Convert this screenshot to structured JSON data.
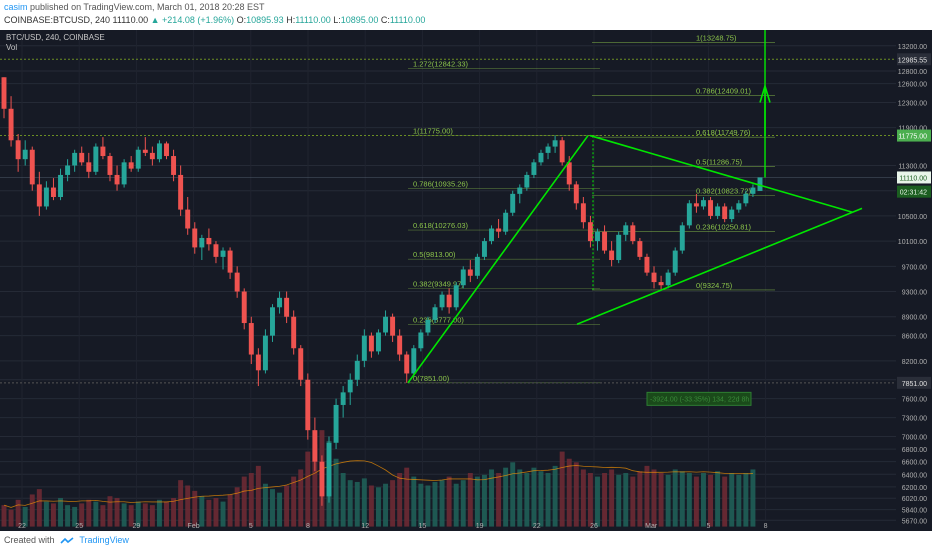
{
  "header": {
    "author": "casim",
    "published_text": "published on TradingView.com, March 01, 2018 20:28 EST",
    "symbol": "COINBASE:BTCUSD, 240",
    "last": "11110.00",
    "change": "+214.08 (+1.96%)",
    "o_label": "O:",
    "o": "10895.93",
    "h_label": "H:",
    "h": "11110.00",
    "l_label": "L:",
    "l": "10895.00",
    "c_label": "C:",
    "c": "11110.00"
  },
  "footer": {
    "created_with": "Created with",
    "brand": "TradingView"
  },
  "chart_data": {
    "type": "candlestick",
    "symbol_label": "BTC/USD, 240, COINBASE",
    "volume_label": "Vol",
    "colors": {
      "up": "#26a69a",
      "down": "#ef5350",
      "drawing": "#00e600",
      "fib": "#8bc34a",
      "bg": "#161a25",
      "ma": "#ff9800"
    },
    "ylim": [
      5500,
      13450
    ],
    "price_ticks": [
      13200,
      12800,
      12600,
      12300,
      11900,
      11300,
      10900,
      10500,
      10100,
      9700,
      9300,
      8900,
      8600,
      8200,
      7900,
      7600,
      7300,
      7000,
      6800,
      6600,
      6400,
      6200,
      6020,
      5840,
      5670
    ],
    "price_labels": [
      {
        "value": 12985.55,
        "text": "12985.55",
        "style": "marker"
      },
      {
        "value": 11775,
        "text": "11775.00",
        "style": "green"
      },
      {
        "value": 11110,
        "text": "11110.00",
        "style": "current"
      },
      {
        "value": 10885,
        "text": "02:31:42",
        "style": "countdown"
      },
      {
        "value": 7851,
        "text": "7851.00",
        "style": "marker"
      }
    ],
    "x_labels": [
      "22",
      "25",
      "29",
      "Feb",
      "5",
      "8",
      "12",
      "15",
      "19",
      "22",
      "26",
      "Mar",
      "5",
      "8"
    ],
    "fib_left": [
      {
        "text": "1.272(12842.33)",
        "price": 12842.33
      },
      {
        "text": "1(11775.00)",
        "price": 11775
      },
      {
        "text": "0.786(10935.26)",
        "price": 10935.26
      },
      {
        "text": "0.618(10276.03)",
        "price": 10276.03
      },
      {
        "text": "0.5(9813.00)",
        "price": 9813
      },
      {
        "text": "0.382(9349.97)",
        "price": 9349.97
      },
      {
        "text": "0.236(8777.00)",
        "price": 8777
      },
      {
        "text": "0(7851.00)",
        "price": 7851
      }
    ],
    "fib_right": [
      {
        "text": "1(13248.75)",
        "price": 13248.75
      },
      {
        "text": "0.786(12409.01)",
        "price": 12409.01
      },
      {
        "text": "0.618(11749.76)",
        "price": 11749.76
      },
      {
        "text": "0.5(11286.75)",
        "price": 11286.75
      },
      {
        "text": "0.382(10823.72)",
        "price": 10823.72
      },
      {
        "text": "0.236(10250.81)",
        "price": 10250.81
      },
      {
        "text": "0(9324.75)",
        "price": 9324.75
      }
    ],
    "projection_label": "-3924.00 (-33.35%) 134, 22d 8h",
    "candles_ohlc": [
      [
        12700,
        12700,
        12050,
        12200
      ],
      [
        12200,
        12400,
        11600,
        11700
      ],
      [
        11700,
        11800,
        11200,
        11400
      ],
      [
        11400,
        11700,
        11300,
        11550
      ],
      [
        11550,
        11600,
        10900,
        11000
      ],
      [
        11000,
        11200,
        10500,
        10650
      ],
      [
        10650,
        11050,
        10600,
        10950
      ],
      [
        10950,
        11100,
        10750,
        10800
      ],
      [
        10800,
        11250,
        10750,
        11150
      ],
      [
        11150,
        11400,
        11050,
        11300
      ],
      [
        11300,
        11550,
        11200,
        11500
      ],
      [
        11500,
        11600,
        11300,
        11350
      ],
      [
        11350,
        11500,
        11100,
        11200
      ],
      [
        11200,
        11650,
        11150,
        11600
      ],
      [
        11600,
        11750,
        11400,
        11450
      ],
      [
        11450,
        11500,
        11050,
        11150
      ],
      [
        11150,
        11300,
        10900,
        11000
      ],
      [
        11000,
        11400,
        10950,
        11350
      ],
      [
        11350,
        11450,
        11200,
        11250
      ],
      [
        11250,
        11600,
        11200,
        11550
      ],
      [
        11550,
        11750,
        11450,
        11500
      ],
      [
        11500,
        11600,
        11300,
        11400
      ],
      [
        11400,
        11700,
        11350,
        11650
      ],
      [
        11650,
        11680,
        11400,
        11450
      ],
      [
        11450,
        11550,
        11050,
        11150
      ],
      [
        11150,
        11300,
        10500,
        10600
      ],
      [
        10600,
        10800,
        10200,
        10300
      ],
      [
        10300,
        10400,
        9900,
        10000
      ],
      [
        10000,
        10200,
        9800,
        10150
      ],
      [
        10150,
        10300,
        9950,
        10050
      ],
      [
        10050,
        10100,
        9750,
        9850
      ],
      [
        9850,
        10000,
        9650,
        9950
      ],
      [
        9950,
        10000,
        9500,
        9600
      ],
      [
        9600,
        9700,
        9200,
        9300
      ],
      [
        9300,
        9350,
        8700,
        8800
      ],
      [
        8800,
        8900,
        8150,
        8300
      ],
      [
        8300,
        8400,
        7800,
        8050
      ],
      [
        8050,
        8700,
        8000,
        8600
      ],
      [
        8600,
        9100,
        8500,
        9050
      ],
      [
        9050,
        9300,
        8950,
        9200
      ],
      [
        9200,
        9300,
        8800,
        8900
      ],
      [
        8900,
        9000,
        8300,
        8400
      ],
      [
        8400,
        8450,
        7800,
        7900
      ],
      [
        7900,
        8000,
        6950,
        7100
      ],
      [
        7100,
        7300,
        6450,
        6600
      ],
      [
        6600,
        6700,
        5900,
        6050
      ],
      [
        6050,
        7000,
        5950,
        6900
      ],
      [
        6900,
        7600,
        6800,
        7500
      ],
      [
        7500,
        7800,
        7300,
        7700
      ],
      [
        7700,
        8000,
        7500,
        7900
      ],
      [
        7900,
        8300,
        7800,
        8200
      ],
      [
        8200,
        8700,
        8100,
        8600
      ],
      [
        8600,
        8650,
        8250,
        8350
      ],
      [
        8350,
        8700,
        8300,
        8650
      ],
      [
        8650,
        9000,
        8600,
        8900
      ],
      [
        8900,
        8950,
        8500,
        8600
      ],
      [
        8600,
        8700,
        8200,
        8300
      ],
      [
        8300,
        8350,
        7851,
        8000
      ],
      [
        8000,
        8450,
        7950,
        8400
      ],
      [
        8400,
        8700,
        8350,
        8650
      ],
      [
        8650,
        8900,
        8600,
        8850
      ],
      [
        8850,
        9100,
        8800,
        9050
      ],
      [
        9050,
        9300,
        9000,
        9250
      ],
      [
        9250,
        9350,
        8950,
        9050
      ],
      [
        9050,
        9450,
        9000,
        9400
      ],
      [
        9400,
        9700,
        9350,
        9650
      ],
      [
        9650,
        9800,
        9450,
        9550
      ],
      [
        9550,
        9900,
        9500,
        9850
      ],
      [
        9850,
        10150,
        9800,
        10100
      ],
      [
        10100,
        10350,
        10050,
        10300
      ],
      [
        10300,
        10450,
        10150,
        10250
      ],
      [
        10250,
        10600,
        10200,
        10550
      ],
      [
        10550,
        10900,
        10500,
        10850
      ],
      [
        10850,
        11000,
        10700,
        10950
      ],
      [
        10950,
        11200,
        10900,
        11150
      ],
      [
        11150,
        11400,
        11100,
        11350
      ],
      [
        11350,
        11550,
        11300,
        11500
      ],
      [
        11500,
        11650,
        11400,
        11600
      ],
      [
        11600,
        11775,
        11500,
        11700
      ],
      [
        11700,
        11750,
        11300,
        11350
      ],
      [
        11350,
        11450,
        10900,
        11000
      ],
      [
        11000,
        11050,
        10600,
        10700
      ],
      [
        10700,
        10800,
        10300,
        10400
      ],
      [
        10400,
        10500,
        10000,
        10100
      ],
      [
        10100,
        10300,
        9950,
        10250
      ],
      [
        10250,
        10350,
        9900,
        9950
      ],
      [
        9950,
        10100,
        9700,
        9800
      ],
      [
        9800,
        10250,
        9750,
        10200
      ],
      [
        10200,
        10400,
        10100,
        10350
      ],
      [
        10350,
        10400,
        10050,
        10100
      ],
      [
        10100,
        10150,
        9800,
        9850
      ],
      [
        9850,
        9900,
        9550,
        9600
      ],
      [
        9600,
        9700,
        9350,
        9450
      ],
      [
        9450,
        9550,
        9324.75,
        9400
      ],
      [
        9400,
        9650,
        9350,
        9600
      ],
      [
        9600,
        10000,
        9550,
        9950
      ],
      [
        9950,
        10400,
        9900,
        10350
      ],
      [
        10350,
        10750,
        10300,
        10700
      ],
      [
        10700,
        10850,
        10550,
        10650
      ],
      [
        10650,
        10800,
        10600,
        10750
      ],
      [
        10750,
        10800,
        10450,
        10500
      ],
      [
        10500,
        10700,
        10450,
        10650
      ],
      [
        10650,
        10700,
        10400,
        10450
      ],
      [
        10450,
        10650,
        10400,
        10600
      ],
      [
        10600,
        10750,
        10550,
        10700
      ],
      [
        10700,
        10900,
        10650,
        10850
      ],
      [
        10850,
        11000,
        10800,
        10950
      ],
      [
        10895.93,
        11110,
        10895,
        11110
      ]
    ],
    "volume": [
      120,
      95,
      150,
      110,
      180,
      210,
      140,
      130,
      160,
      120,
      110,
      130,
      150,
      140,
      120,
      170,
      160,
      130,
      120,
      140,
      130,
      120,
      150,
      140,
      160,
      260,
      230,
      200,
      170,
      150,
      160,
      140,
      180,
      220,
      280,
      300,
      340,
      240,
      210,
      190,
      230,
      280,
      320,
      420,
      460,
      540,
      480,
      380,
      300,
      260,
      250,
      270,
      230,
      220,
      240,
      260,
      300,
      330,
      280,
      240,
      230,
      250,
      260,
      280,
      240,
      260,
      300,
      280,
      290,
      320,
      300,
      330,
      360,
      320,
      300,
      330,
      310,
      300,
      340,
      420,
      380,
      360,
      320,
      300,
      280,
      300,
      320,
      290,
      300,
      280,
      310,
      340,
      320,
      300,
      290,
      320,
      310,
      300,
      280,
      300,
      290,
      310,
      280,
      300,
      290,
      300,
      320
    ]
  }
}
